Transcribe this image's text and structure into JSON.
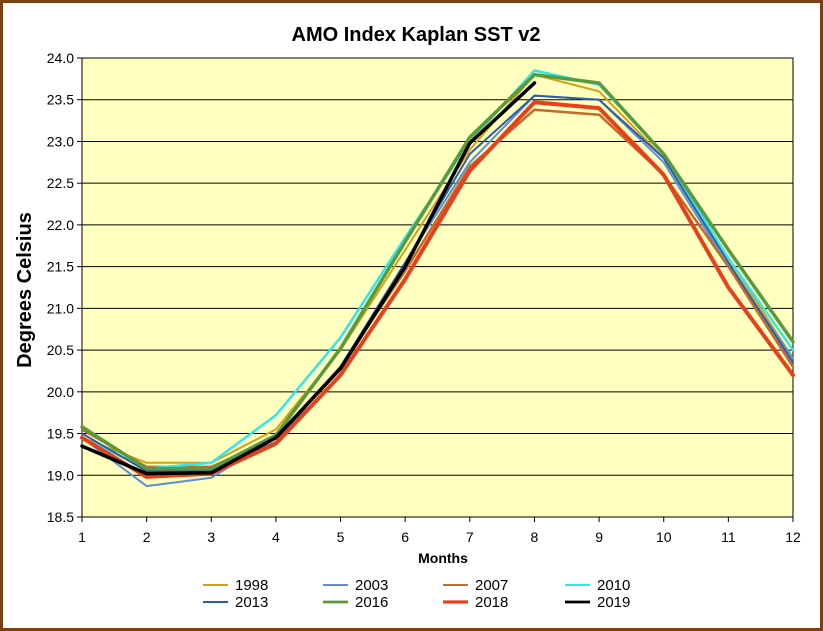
{
  "chart_data": {
    "type": "line",
    "title": "AMO Index Kaplan SST v2",
    "xlabel": "Months",
    "ylabel": "Degrees Celsius",
    "x": [
      1,
      2,
      3,
      4,
      5,
      6,
      7,
      8,
      9,
      10,
      11,
      12
    ],
    "xlim": [
      1,
      12
    ],
    "ylim": [
      18.5,
      24.0
    ],
    "yticks": [
      "18.5",
      "19.0",
      "19.5",
      "20.0",
      "20.5",
      "21.0",
      "21.5",
      "22.0",
      "22.5",
      "23.0",
      "23.5",
      "24.0"
    ],
    "xticks": [
      "1",
      "2",
      "3",
      "4",
      "5",
      "6",
      "7",
      "8",
      "9",
      "10",
      "11",
      "12"
    ],
    "grid": "horizontal",
    "legend": "bottom",
    "series": [
      {
        "name": "1998",
        "color": "#d4a017",
        "width": 2,
        "values": [
          19.45,
          19.15,
          19.15,
          19.55,
          20.5,
          21.7,
          22.9,
          23.8,
          23.6,
          22.8,
          21.6,
          20.4
        ]
      },
      {
        "name": "2003",
        "color": "#5b8fd6",
        "width": 2,
        "values": [
          19.45,
          18.87,
          18.97,
          19.45,
          20.3,
          21.55,
          22.75,
          23.55,
          23.5,
          22.75,
          21.5,
          20.4
        ]
      },
      {
        "name": "2007",
        "color": "#c46a28",
        "width": 2.5,
        "values": [
          19.55,
          19.1,
          19.1,
          19.45,
          20.3,
          21.45,
          22.7,
          23.38,
          23.32,
          22.6,
          21.5,
          20.3
        ]
      },
      {
        "name": "2010",
        "color": "#2ee8ee",
        "width": 2.5,
        "values": [
          19.45,
          19.08,
          19.15,
          19.72,
          20.65,
          21.85,
          23.0,
          23.85,
          23.68,
          22.85,
          21.6,
          20.5
        ]
      },
      {
        "name": "2013",
        "color": "#2e5ea8",
        "width": 2,
        "values": [
          19.5,
          19.05,
          19.05,
          19.4,
          20.3,
          21.55,
          22.85,
          23.55,
          23.5,
          22.8,
          21.55,
          20.35
        ]
      },
      {
        "name": "2016",
        "color": "#5a9a3a",
        "width": 3.5,
        "values": [
          19.58,
          19.08,
          19.08,
          19.48,
          20.52,
          21.8,
          23.05,
          23.8,
          23.7,
          22.85,
          21.7,
          20.6
        ]
      },
      {
        "name": "2018",
        "color": "#e8401a",
        "width": 4,
        "values": [
          19.45,
          18.98,
          19.02,
          19.38,
          20.2,
          21.35,
          22.65,
          23.47,
          23.4,
          22.6,
          21.25,
          20.2
        ]
      },
      {
        "name": "2019",
        "color": "#000000",
        "width": 3.5,
        "values": [
          19.35,
          19.02,
          19.03,
          19.45,
          20.28,
          21.5,
          22.98,
          23.7,
          null,
          null,
          null,
          null
        ]
      }
    ]
  }
}
